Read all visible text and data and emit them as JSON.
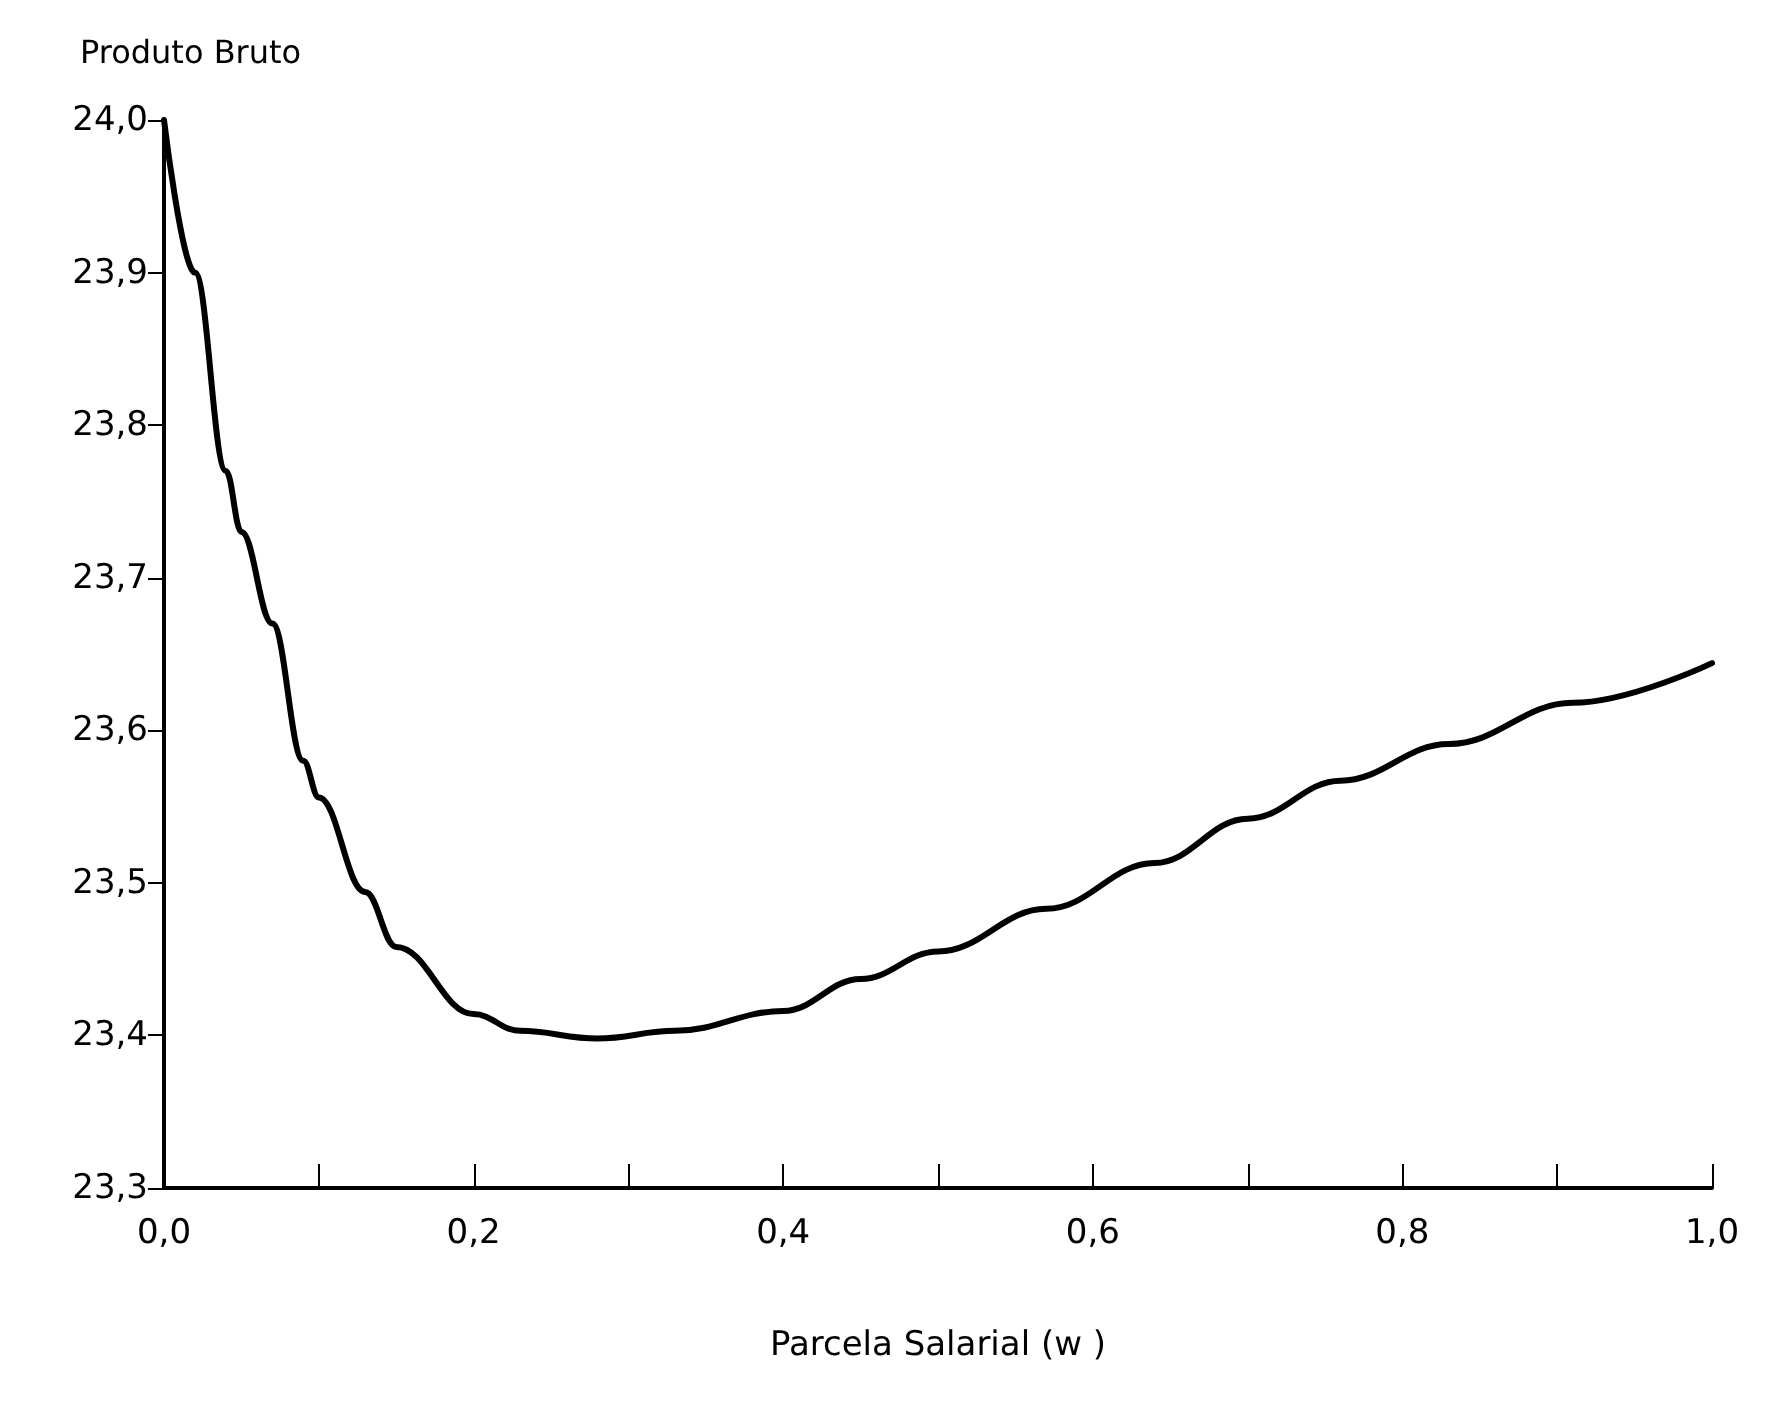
{
  "chart_data": {
    "type": "line",
    "xlabel": "Parcela Salarial (w )",
    "ylabel": "Produto Bruto",
    "series": [
      {
        "color": "#000000",
        "x": [
          0,
          0.02,
          0.04,
          0.05,
          0.07,
          0.09,
          0.1,
          0.13,
          0.15,
          0.2,
          0.23,
          0.28,
          0.33,
          0.4,
          0.45,
          0.5,
          0.57,
          0.64,
          0.7,
          0.76,
          0.83,
          0.91,
          1.0
        ],
        "values": [
          24.0,
          23.9,
          23.77,
          23.73,
          23.67,
          23.58,
          23.556,
          23.494,
          23.458,
          23.414,
          23.403,
          23.398,
          23.403,
          23.416,
          23.437,
          23.455,
          23.483,
          23.513,
          23.542,
          23.567,
          23.591,
          23.618,
          23.644
        ]
      }
    ],
    "xlim": [
      0,
      1
    ],
    "xticks": [
      {
        "value": 0,
        "label": "0,0"
      },
      {
        "value": 0.1,
        "label": null
      },
      {
        "value": 0.2,
        "label": "0,2"
      },
      {
        "value": 0.3,
        "label": null
      },
      {
        "value": 0.4,
        "label": "0,4"
      },
      {
        "value": 0.5,
        "label": null
      },
      {
        "value": 0.6,
        "label": "0,6"
      },
      {
        "value": 0.7,
        "label": null
      },
      {
        "value": 0.8,
        "label": "0,8"
      },
      {
        "value": 0.9,
        "label": null
      },
      {
        "value": 1,
        "label": "1,0"
      }
    ],
    "ylim": [
      23.3,
      24.0
    ],
    "yticks": [
      {
        "value": 23.3,
        "label": "23,3"
      },
      {
        "value": 23.4,
        "label": "23,4"
      },
      {
        "value": 23.5,
        "label": "23,5"
      },
      {
        "value": 23.6,
        "label": "23,6"
      },
      {
        "value": 23.7,
        "label": "23,7"
      },
      {
        "value": 23.8,
        "label": "23,8"
      },
      {
        "value": 23.9,
        "label": "23,9"
      },
      {
        "value": 24.0,
        "label": "24,0"
      }
    ],
    "grid": false,
    "marker": "none",
    "line_style": "solid"
  }
}
